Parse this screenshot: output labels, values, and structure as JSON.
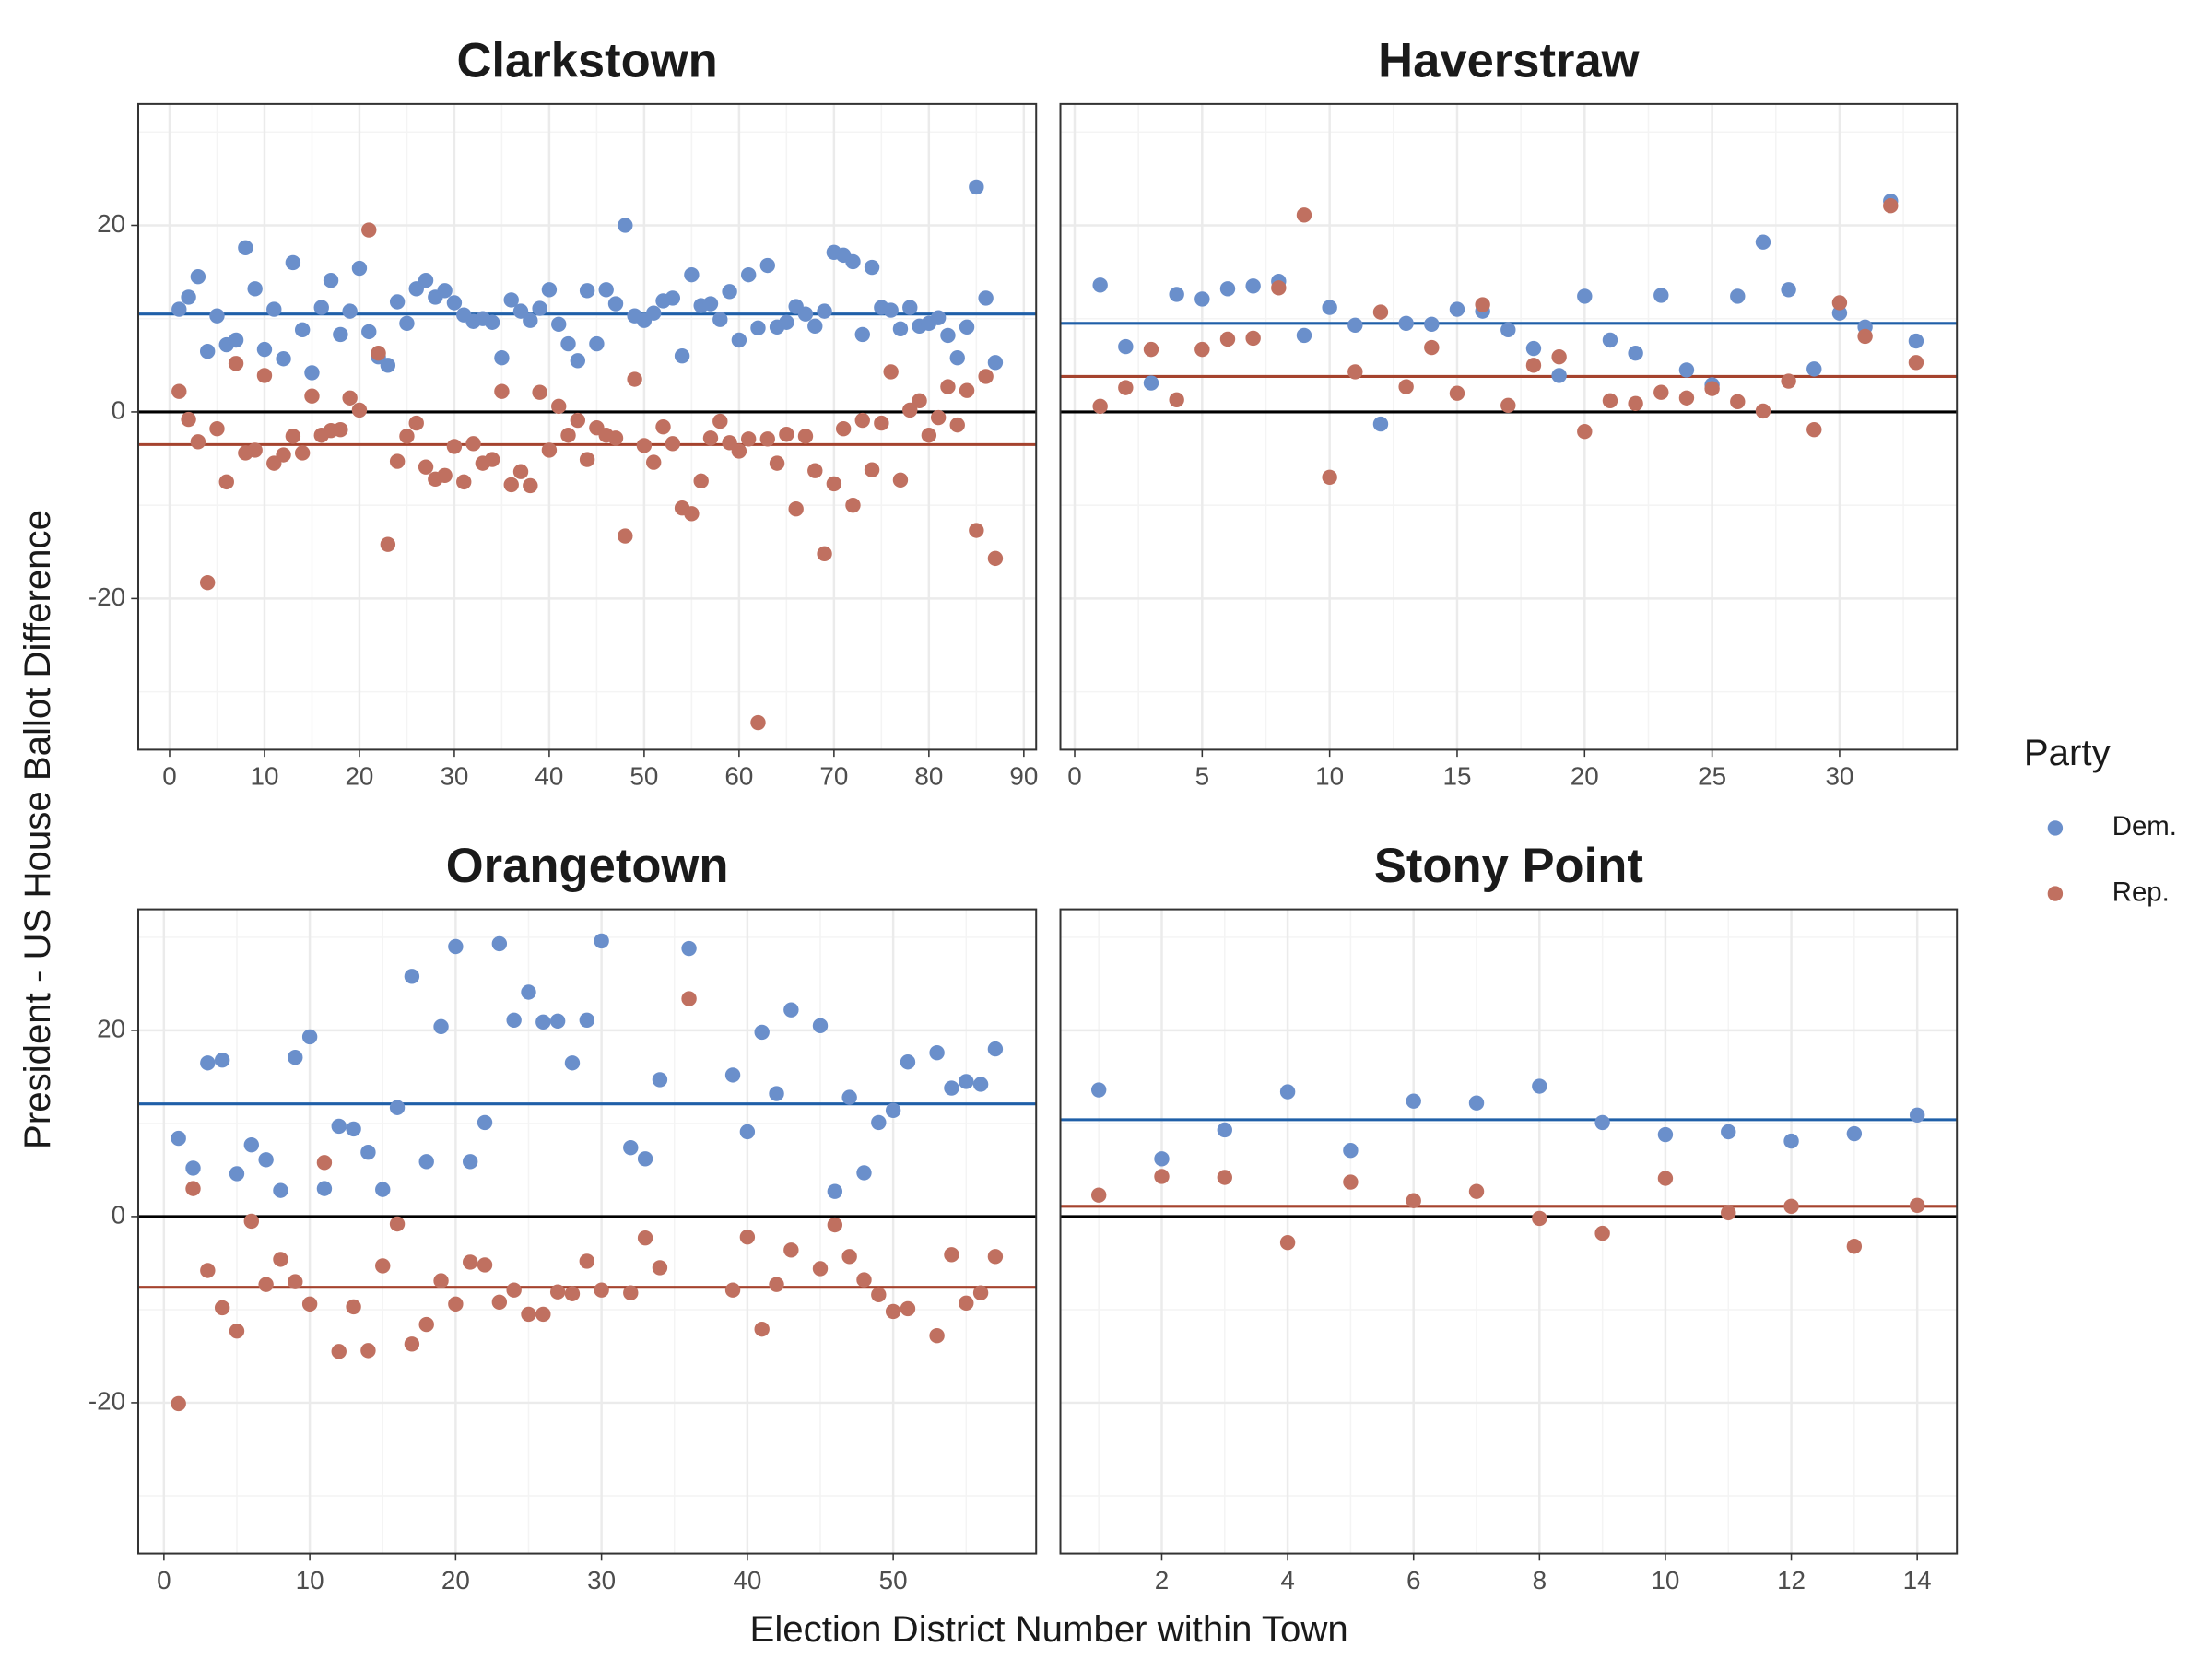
{
  "shared": {
    "xlabel": "Election District Number within Town",
    "ylabel": "President - US House Ballot Difference",
    "legend_title": "Party",
    "grid": true
  },
  "chart_data": [
    {
      "type": "scatter",
      "title": "Clarkstown",
      "x": [
        1,
        2,
        3,
        4,
        5,
        6,
        7,
        8,
        9,
        10,
        11,
        12,
        13,
        14,
        15,
        16,
        17,
        18,
        19,
        20,
        21,
        22,
        23,
        24,
        25,
        26,
        27,
        28,
        29,
        30,
        31,
        32,
        33,
        34,
        35,
        36,
        37,
        38,
        39,
        40,
        41,
        42,
        43,
        44,
        45,
        46,
        47,
        48,
        49,
        50,
        51,
        52,
        53,
        54,
        55,
        56,
        57,
        58,
        59,
        60,
        61,
        62,
        63,
        64,
        65,
        66,
        67,
        68,
        69,
        70,
        71,
        72,
        73,
        74,
        75,
        76,
        77,
        78,
        79,
        80,
        81,
        82,
        83,
        84,
        85,
        86,
        87
      ],
      "xlim": [
        -3.3,
        91.3
      ],
      "xticks": [
        0,
        10,
        20,
        30,
        40,
        50,
        60,
        70,
        80,
        90
      ],
      "ylim": [
        -36.2,
        33
      ],
      "yticks": [
        -20,
        0,
        20
      ],
      "hline": 0,
      "series": [
        {
          "name": "Dem.",
          "color": "#6a8fcb",
          "line_color": "#1f5fa8",
          "mean_line": 10.5,
          "values": [
            11,
            12.3,
            14.5,
            6.5,
            10.3,
            7.2,
            7.7,
            17.6,
            13.2,
            6.7,
            11,
            5.7,
            16,
            8.8,
            4.2,
            11.2,
            14.1,
            8.3,
            10.8,
            15.4,
            8.6,
            5.9,
            5,
            11.8,
            9.5,
            13.2,
            14.1,
            12.3,
            13,
            11.7,
            10.4,
            9.7,
            10,
            9.6,
            5.8,
            12,
            10.8,
            9.8,
            11.1,
            13.1,
            9.4,
            7.3,
            5.5,
            13,
            7.3,
            13.1,
            11.6,
            20,
            10.3,
            9.8,
            10.6,
            11.9,
            12.2,
            6,
            14.7,
            11.4,
            11.6,
            9.9,
            12.9,
            7.7,
            14.7,
            9,
            15.7,
            9.1,
            9.6,
            11.3,
            10.5,
            9.2,
            10.8,
            17.1,
            16.8,
            16.1,
            8.3,
            15.5,
            11.2,
            10.9,
            8.9,
            11.2,
            9.2,
            9.5,
            10.1,
            8.2,
            5.8,
            9.1,
            24.1,
            12.2,
            5.3
          ]
        },
        {
          "name": "Rep.",
          "color": "#c07060",
          "line_color": "#a5432e",
          "mean_line": -3.5,
          "values": [
            2.2,
            -0.8,
            -3.2,
            -18.3,
            -1.8,
            -7.5,
            5.2,
            -4.4,
            -4.1,
            3.9,
            -5.5,
            -4.6,
            -2.6,
            -4.4,
            1.7,
            -2.5,
            -2,
            -1.9,
            1.5,
            0.2,
            19.5,
            6.3,
            -14.2,
            -5.3,
            -2.6,
            -1.2,
            -5.9,
            -7.2,
            -6.8,
            -3.7,
            -7.5,
            -3.4,
            -5.5,
            -5.1,
            2.2,
            -7.8,
            -6.4,
            -7.9,
            2.1,
            -4.1,
            0.6,
            -2.5,
            -0.9,
            -5.1,
            -1.7,
            -2.5,
            -2.8,
            -13.3,
            3.5,
            -3.6,
            -5.4,
            -1.6,
            -3.4,
            -10.3,
            -10.9,
            -7.4,
            -2.8,
            -1,
            -3.3,
            -4.2,
            -2.9,
            -33.3,
            -2.9,
            -5.5,
            -2.4,
            -10.4,
            -2.6,
            -6.3,
            -15.2,
            -7.7,
            -1.8,
            -10,
            -0.9,
            -6.2,
            -1.2,
            4.3,
            -7.3,
            0.2,
            1.2,
            -2.5,
            -0.6,
            2.7,
            -1.4,
            2.3,
            -12.7,
            3.8,
            -15.7
          ]
        }
      ]
    },
    {
      "type": "scatter",
      "title": "Haverstraw",
      "x": [
        1,
        2,
        3,
        4,
        5,
        6,
        7,
        8,
        9,
        10,
        11,
        12,
        13,
        14,
        15,
        16,
        17,
        18,
        19,
        20,
        21,
        22,
        23,
        24,
        25,
        26,
        27,
        28,
        29,
        30,
        31,
        32,
        33
      ],
      "xlim": [
        -0.56,
        34.6
      ],
      "xticks": [
        0,
        5,
        10,
        15,
        20,
        25,
        30
      ],
      "ylim": [
        -36.2,
        33
      ],
      "yticks": [
        -20,
        0,
        20
      ],
      "hline": 0,
      "series": [
        {
          "name": "Dem.",
          "color": "#6a8fcb",
          "line_color": "#1f5fa8",
          "mean_line": 9.5,
          "values": [
            13.6,
            7,
            3.1,
            12.6,
            12.1,
            13.2,
            13.5,
            14,
            8.2,
            11.2,
            9.3,
            -1.3,
            9.5,
            9.4,
            11,
            10.8,
            8.8,
            6.8,
            3.9,
            12.4,
            7.7,
            6.3,
            12.5,
            4.5,
            2.9,
            12.4,
            18.2,
            13.1,
            4.6,
            10.6,
            9.1,
            22.6,
            7.6
          ]
        },
        {
          "name": "Rep.",
          "color": "#c07060",
          "line_color": "#a5432e",
          "mean_line": 3.8,
          "values": [
            0.6,
            2.6,
            6.7,
            1.3,
            6.7,
            7.8,
            7.9,
            13.3,
            21.1,
            -7,
            4.3,
            10.7,
            2.7,
            6.9,
            2,
            11.5,
            0.7,
            5,
            5.9,
            -2.1,
            1.2,
            0.9,
            2.1,
            1.5,
            2.5,
            1.1,
            0.1,
            3.3,
            -1.9,
            11.7,
            8.1,
            22.1,
            5.3
          ]
        }
      ]
    },
    {
      "type": "scatter",
      "title": "Orangetown",
      "x": [
        1,
        2,
        3,
        4,
        5,
        6,
        7,
        8,
        9,
        10,
        11,
        12,
        13,
        14,
        15,
        16,
        17,
        18,
        19,
        20,
        21,
        22,
        23,
        24,
        25,
        26,
        27,
        28,
        29,
        30,
        32,
        33,
        34,
        36,
        39,
        40,
        41,
        42,
        43,
        45,
        46,
        47,
        48,
        49,
        50,
        51,
        53,
        54,
        55,
        56,
        57
      ],
      "xlim": [
        -1.76,
        59.8
      ],
      "xticks": [
        0,
        10,
        20,
        30,
        40,
        50
      ],
      "ylim": [
        -36.2,
        33
      ],
      "yticks": [
        -20,
        0,
        20
      ],
      "hline": 0,
      "series": [
        {
          "name": "Dem.",
          "color": "#6a8fcb",
          "line_color": "#1f5fa8",
          "mean_line": 12.1,
          "values": [
            8.4,
            5.2,
            16.5,
            16.8,
            4.6,
            7.7,
            6.1,
            2.8,
            17.1,
            19.3,
            3,
            9.7,
            9.4,
            6.9,
            2.9,
            11.7,
            25.8,
            5.9,
            20.4,
            29,
            5.9,
            10.1,
            29.3,
            21.1,
            24.1,
            20.9,
            21,
            16.5,
            21.1,
            29.6,
            7.4,
            6.2,
            14.7,
            28.8,
            15.2,
            9.1,
            19.8,
            13.2,
            22.2,
            20.5,
            2.7,
            12.8,
            4.7,
            10.1,
            11.4,
            16.6,
            17.6,
            13.8,
            14.5,
            14.2,
            18
          ]
        },
        {
          "name": "Rep.",
          "color": "#c07060",
          "line_color": "#a5432e",
          "mean_line": -7.6,
          "values": [
            -20.1,
            3,
            -5.8,
            -9.8,
            -12.3,
            -0.5,
            -7.3,
            -4.6,
            -7,
            -9.4,
            5.8,
            -14.5,
            -9.7,
            -14.4,
            -5.3,
            -0.8,
            -13.7,
            -11.6,
            -6.9,
            -9.4,
            -4.9,
            -5.2,
            -9.2,
            -7.9,
            -10.5,
            -10.5,
            -8.1,
            -8.3,
            -4.8,
            -7.9,
            -8.2,
            -2.3,
            -5.5,
            23.4,
            -7.9,
            -2.2,
            -12.1,
            -7.3,
            -3.6,
            -5.6,
            -0.9,
            -4.3,
            -6.8,
            -8.4,
            -10.2,
            -9.9,
            -12.8,
            -4.1,
            -9.3,
            -8.2,
            -4.3
          ]
        }
      ]
    },
    {
      "type": "scatter",
      "title": "Stony Point",
      "x": [
        1,
        2,
        3,
        4,
        5,
        6,
        7,
        8,
        9,
        10,
        11,
        12,
        13,
        14
      ],
      "xlim": [
        0.39,
        14.63
      ],
      "xticks": [
        2,
        4,
        6,
        8,
        10,
        12,
        14
      ],
      "ylim": [
        -36.2,
        33
      ],
      "yticks": [
        -20,
        0,
        20
      ],
      "hline": 0,
      "series": [
        {
          "name": "Dem.",
          "color": "#6a8fcb",
          "line_color": "#1f5fa8",
          "mean_line": 10.4,
          "values": [
            13.6,
            6.2,
            9.3,
            13.4,
            7.1,
            12.4,
            12.2,
            14,
            10.1,
            8.8,
            9.1,
            8.1,
            8.9,
            10.9
          ]
        },
        {
          "name": "Rep.",
          "color": "#c07060",
          "line_color": "#a5432e",
          "mean_line": 1.1,
          "values": [
            2.3,
            4.3,
            4.2,
            -2.8,
            3.7,
            1.7,
            2.7,
            -0.2,
            -1.8,
            4.1,
            0.4,
            1.1,
            -3.2,
            1.2
          ]
        }
      ]
    }
  ]
}
